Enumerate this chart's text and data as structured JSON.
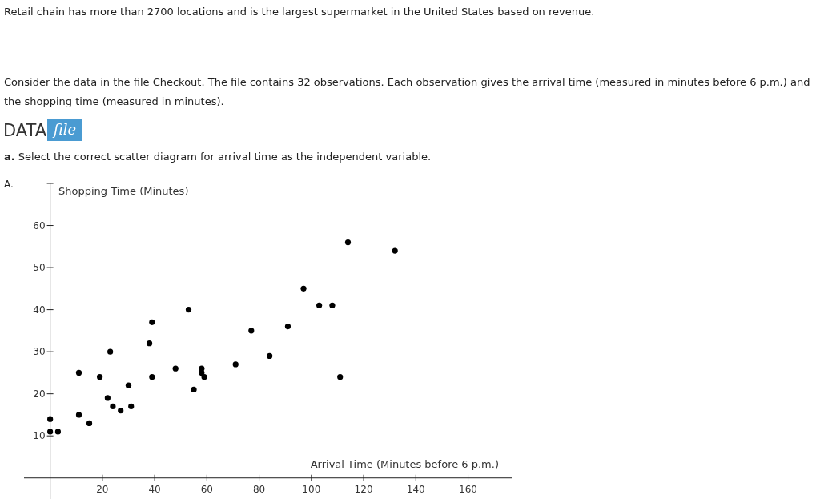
{
  "chart_data": {
    "type": "scatter",
    "xlabel": "Arrival Time (Minutes before 6 p.m.)",
    "ylabel": "Shopping Time (Minutes)",
    "annotations": [
      "Retail chain has more than 2700 locations and is the largest supermarket in the United States based on revenue.",
      "Consider the data in the file Checkout. The file contains 32 observations. Each observation gives the arrival time (measured in minutes before 6 p.m.) and the shopping time (measured in minutes).",
      "DATA",
      "file",
      "a.",
      "Select the correct scatter diagram for arrival time as the independent variable.",
      "A."
    ],
    "x": [
      0,
      0,
      3,
      11,
      11,
      15,
      19,
      23,
      22,
      24,
      27,
      30,
      31,
      38,
      39,
      39,
      48,
      53,
      55,
      58,
      58,
      59,
      71,
      77,
      84,
      91,
      97,
      103,
      108,
      111,
      114,
      132
    ],
    "series": [
      {
        "color": "#000000",
        "values": [
          14,
          11,
          11,
          25,
          15,
          13,
          24,
          30,
          19,
          17,
          16,
          22,
          17,
          32,
          37,
          24,
          26,
          40,
          21,
          26,
          25,
          24,
          27,
          35,
          29,
          36,
          45,
          41,
          41,
          24,
          56,
          54
        ]
      }
    ],
    "xlim": [
      -10,
      177
    ],
    "xticks": [
      20,
      40,
      60,
      80,
      100,
      120,
      140,
      160
    ],
    "ylim": [
      -5,
      70
    ],
    "yticks": [
      10,
      20,
      30,
      40,
      50,
      60
    ],
    "grid": false,
    "marker": "circle"
  }
}
